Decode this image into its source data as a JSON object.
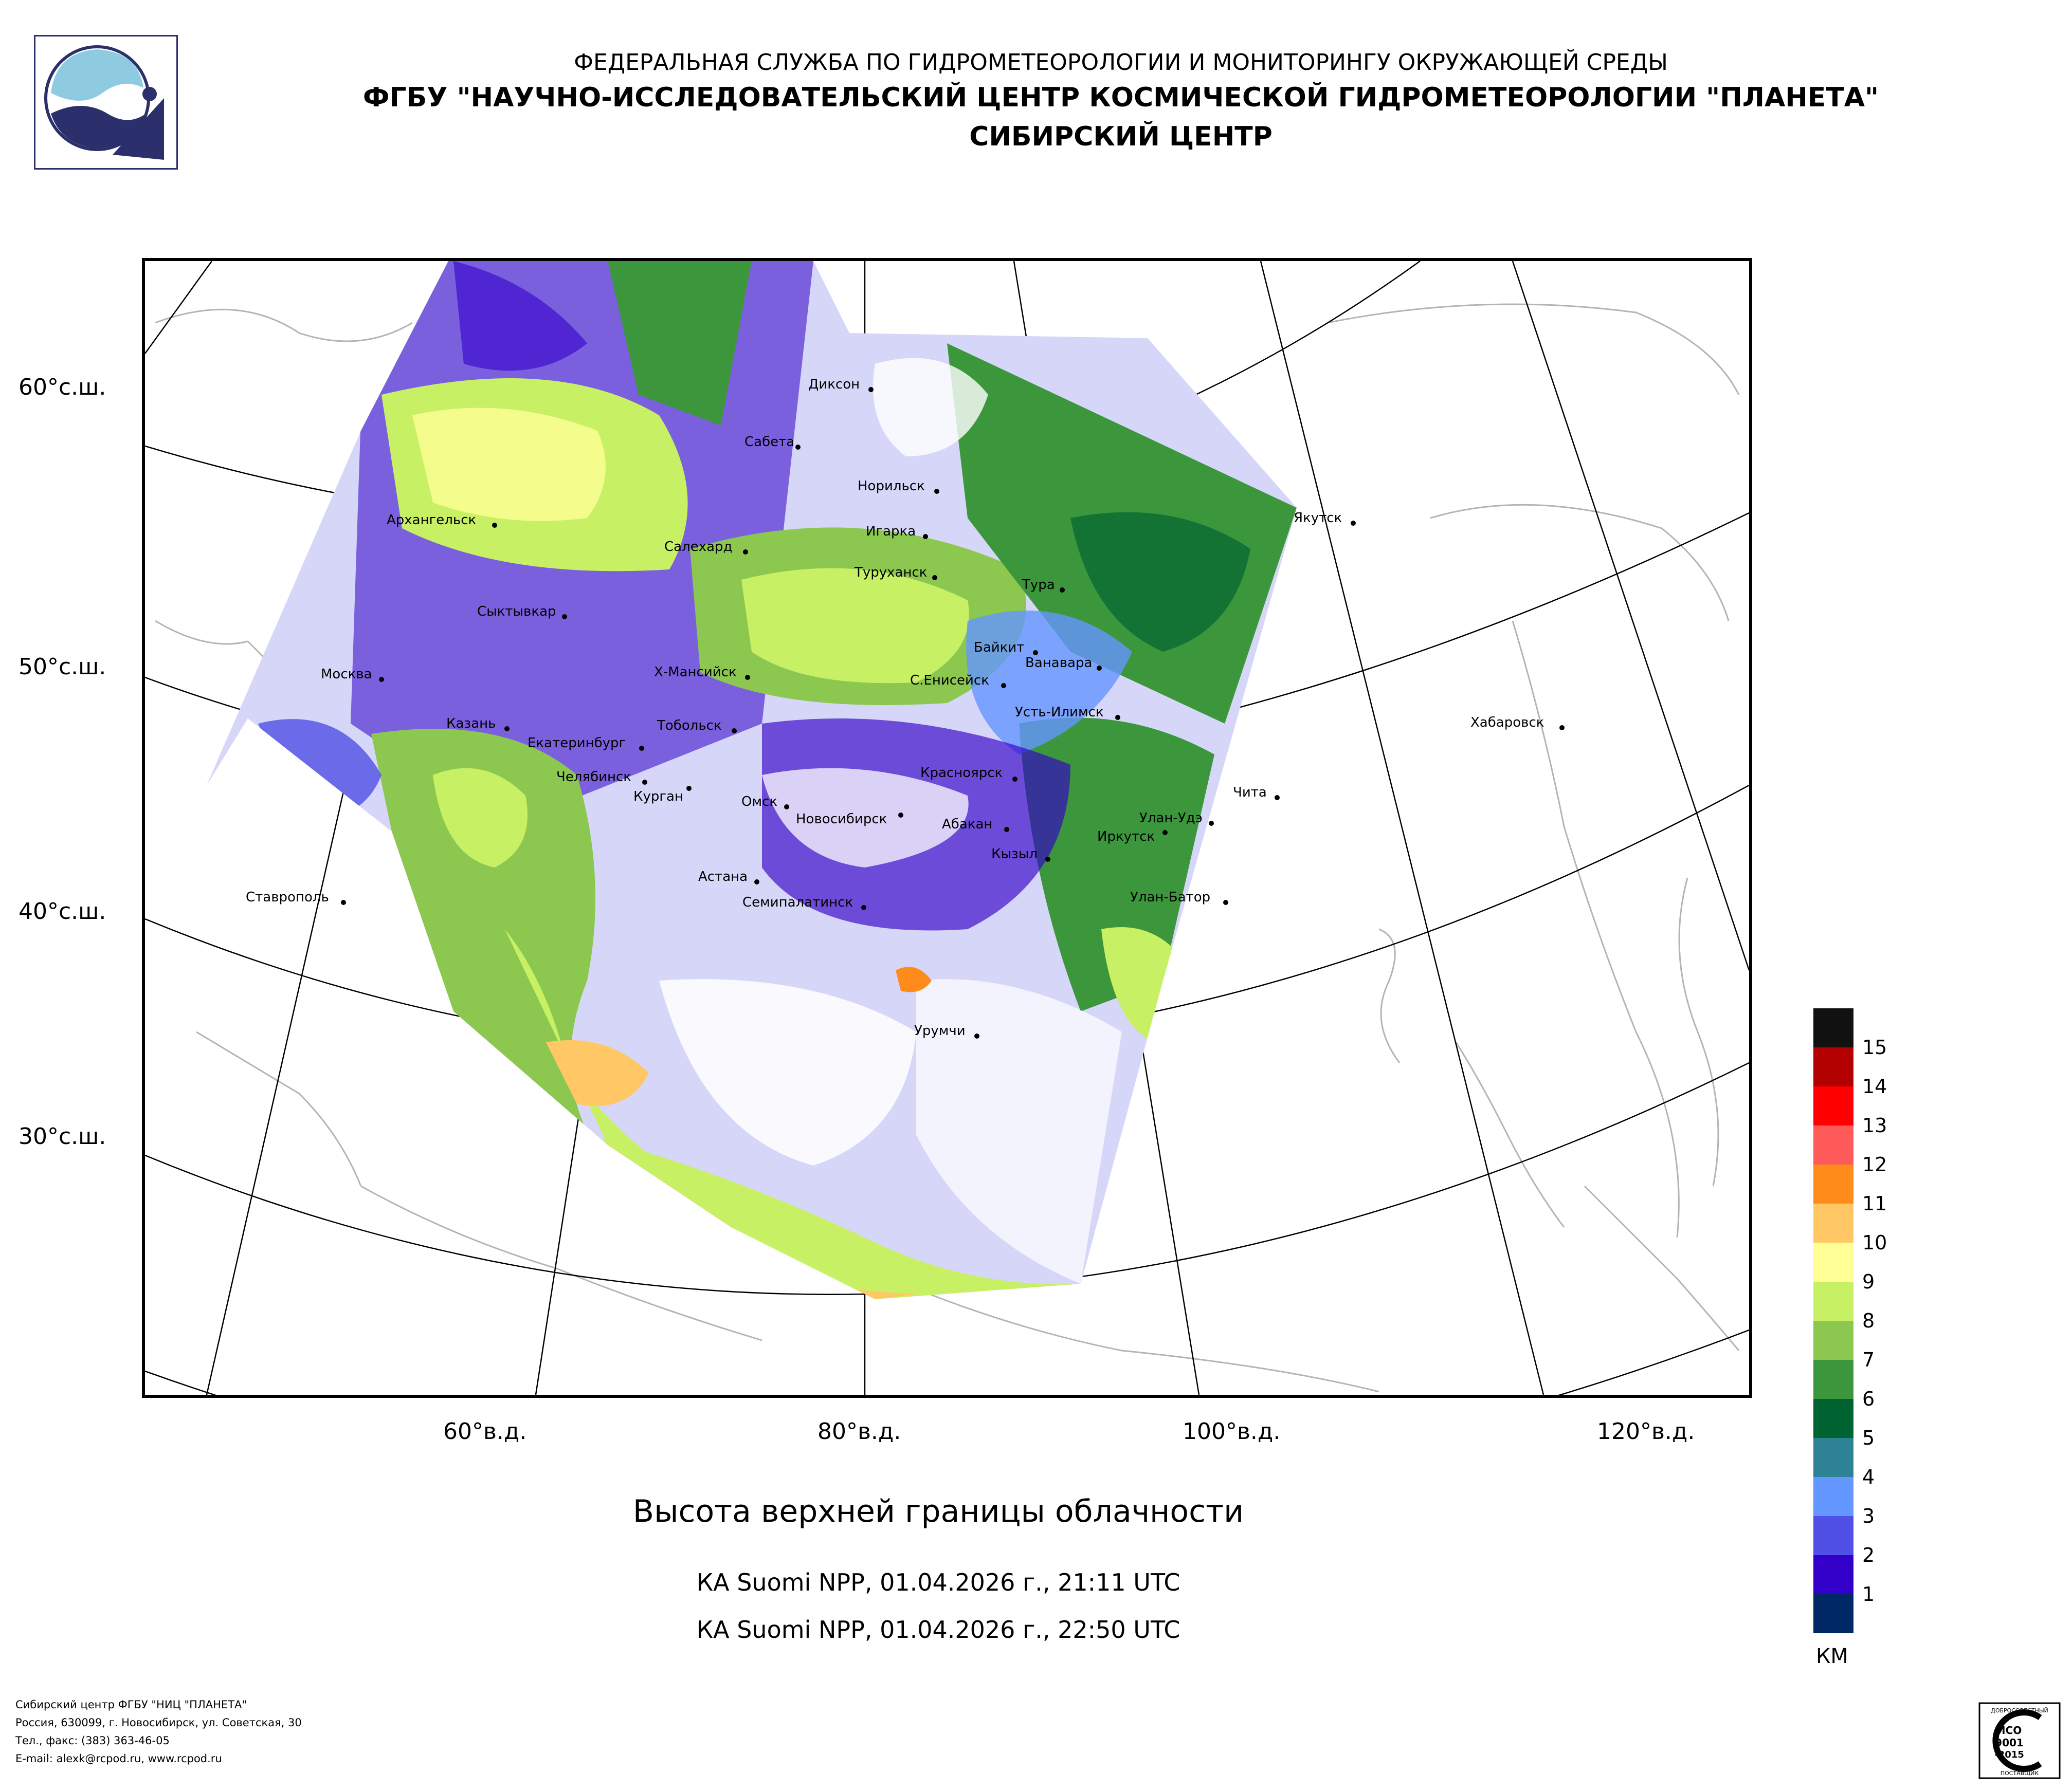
{
  "header": {
    "line1": "ФЕДЕРАЛЬНАЯ СЛУЖБА ПО ГИДРОМЕТЕОРОЛОГИИ И МОНИТОРИНГУ ОКРУЖАЮЩЕЙ СРЕДЫ",
    "line2": "ФГБУ \"НАУЧНО-ИССЛЕДОВАТЕЛЬСКИЙ ЦЕНТР КОСМИЧЕСКОЙ ГИДРОМЕТЕОРОЛОГИИ \"ПЛАНЕТА\"",
    "line3": "СИБИРСКИЙ ЦЕНТР"
  },
  "map": {
    "lat_labels": [
      "60°с.ш.",
      "50°с.ш.",
      "40°с.ш.",
      "30°с.ш."
    ],
    "lon_labels": [
      "60°в.д.",
      "80°в.д.",
      "100°в.д.",
      "120°в.д."
    ],
    "cities": [
      "Диксон",
      "Сабета",
      "Норильск",
      "Игарка",
      "Архангельск",
      "Салехард",
      "Туруханск",
      "Тура",
      "Якутск",
      "Сыктывкар",
      "Байкит",
      "Ванавара",
      "Москва",
      "Х-Мансийск",
      "С.Енисейск",
      "Усть-Илимск",
      "Казань",
      "Тобольск",
      "Екатеринбург",
      "Хабаровск",
      "Челябинск",
      "Курган",
      "Омск",
      "Красноярск",
      "Чита",
      "Новосибирск",
      "Абакан",
      "Улан-Удэ",
      "Иркутск",
      "Кызыл",
      "Ставрополь",
      "Астана",
      "Улан-Батор",
      "Семипалатинск",
      "Урумчи"
    ]
  },
  "title": "Высота верхней границы облачности",
  "passes": [
    "КА Suomi NPP, 01.04.2026 г., 21:11 UTC",
    "КА Suomi NPP, 01.04.2026 г., 22:50 UTC"
  ],
  "legend": {
    "unit": "КМ",
    "colors": [
      "#111111",
      "#b30000",
      "#ff0000",
      "#ff5a5a",
      "#ff8c1a",
      "#ffc864",
      "#ffff96",
      "#c8f064",
      "#8cc850",
      "#3c963c",
      "#006432",
      "#2d8296",
      "#6496ff",
      "#5050e6",
      "#3200c8",
      "#002864"
    ],
    "labels": [
      "15",
      "14",
      "13",
      "12",
      "11",
      "10",
      "9",
      "8",
      "7",
      "6",
      "5",
      "4",
      "3",
      "2",
      "1"
    ]
  },
  "footer": {
    "line1": "Сибирский центр ФГБУ \"НИЦ \"ПЛАНЕТА\"",
    "line2": "Россия, 630099, г. Новосибирск, ул. Советская, 30",
    "line3": "Тел., факс: (383) 363-46-05",
    "line4": "E-mail: alexk@rcpod.ru, www.rcpod.ru"
  },
  "iso_badge": {
    "top": "ДОБРОСОВЕСТНЫЙ",
    "l1": "ИСО",
    "l2": "9001",
    "l3": "-2015",
    "bottom": "ПОСТАВЩИК"
  }
}
